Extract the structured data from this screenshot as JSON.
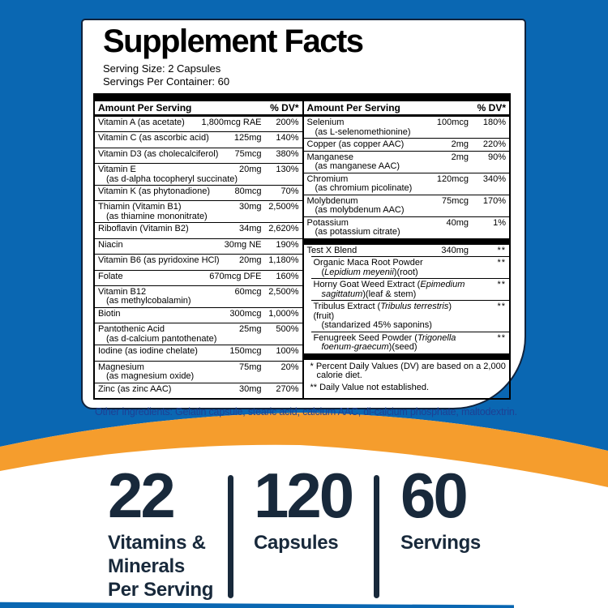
{
  "colors": {
    "background_blue": "#0a67b2",
    "wave_orange": "#f59d2d",
    "navy_text": "#18293b",
    "ingredients_text_blue": "#1e4094"
  },
  "label": {
    "title": "Supplement Facts",
    "serving_size": "Serving Size: 2 Capsules",
    "servings_per_container": "Servings Per Container: 60",
    "header": {
      "amount": "Amount Per Serving",
      "dv": "% DV*"
    },
    "left_rows": [
      {
        "name": "Vitamin A (as acetate)",
        "amt": "1,800mcg RAE",
        "dv": "200%"
      },
      {
        "name": "Vitamin C (as ascorbic acid)",
        "amt": "125mg",
        "dv": "140%"
      },
      {
        "name": "Vitamin D3 (as cholecalciferol)",
        "amt": "75mcg",
        "dv": "380%"
      },
      {
        "name": "Vitamin E",
        "sub": "(as d-alpha tocopheryl succinate)",
        "amt": "20mg",
        "dv": "130%"
      },
      {
        "name": "Vitamin K (as phytonadione)",
        "amt": "80mcg",
        "dv": "70%"
      },
      {
        "name": "Thiamin (Vitamin B1)",
        "sub": "(as thiamine mononitrate)",
        "amt": "30mg",
        "dv": "2,500%"
      },
      {
        "name": "Riboflavin (Vitamin B2)",
        "amt": "34mg",
        "dv": "2,620%"
      },
      {
        "name": "Niacin",
        "amt": "30mg NE",
        "dv": "190%"
      },
      {
        "name": "Vitamin B6 (as pyridoxine HCl)",
        "amt": "20mg",
        "dv": "1,180%"
      },
      {
        "name": "Folate",
        "amt": "670mcg DFE",
        "dv": "160%"
      },
      {
        "name": "Vitamin B12",
        "sub": "(as methylcobalamin)",
        "amt": "60mcg",
        "dv": "2,500%"
      },
      {
        "name": "Biotin",
        "amt": "300mcg",
        "dv": "1,000%"
      },
      {
        "name": "Pantothenic Acid",
        "sub": "(as d-calcium pantothenate)",
        "amt": "25mg",
        "dv": "500%"
      },
      {
        "name": "Iodine (as iodine chelate)",
        "amt": "150mcg",
        "dv": "100%"
      },
      {
        "name": "Magnesium",
        "sub": "(as magnesium oxide)",
        "amt": "75mg",
        "dv": "20%"
      },
      {
        "name": "Zinc (as zinc AAC)",
        "amt": "30mg",
        "dv": "270%"
      }
    ],
    "right_rows": [
      {
        "name": "Selenium",
        "sub": "(as L-selenomethionine)",
        "amt": "100mcg",
        "dv": "180%"
      },
      {
        "name": "Copper (as copper AAC)",
        "amt": "2mg",
        "dv": "220%"
      },
      {
        "name": "Manganese",
        "sub": "(as manganese AAC)",
        "amt": "2mg",
        "dv": "90%"
      },
      {
        "name": "Chromium",
        "sub": "(as chromium picolinate)",
        "amt": "120mcg",
        "dv": "340%"
      },
      {
        "name": "Molybdenum",
        "sub": "(as molybdenum AAC)",
        "amt": "75mcg",
        "dv": "170%"
      },
      {
        "name": "Potassium",
        "sub": "(as potassium citrate)",
        "amt": "40mg",
        "dv": "1%"
      }
    ],
    "blend_rows": [
      {
        "name": "Test X Blend",
        "amt": "340mg",
        "dv": "**"
      },
      {
        "name": "Organic Maca Root Powder",
        "sub": "(_Lepidium meyenii_)(root)",
        "dv": "**",
        "indent": true
      },
      {
        "name": "Horny Goat Weed Extract (_Epimedium_",
        "sub": "_sagittatum_)(leaf & stem)",
        "dv": "**",
        "indent": true
      },
      {
        "name": "Tribulus Extract (_Tribulus terrestris_)(fruit)",
        "sub": "(standarized 45% saponins)",
        "dv": "**",
        "indent": true
      },
      {
        "name": "Fenugreek Seed Powder (_Trigonella_",
        "sub": "_foenum-graecum_)(seed)",
        "dv": "**",
        "indent": true
      }
    ],
    "footnotes": [
      "* Percent Daily Values (DV) are based on a 2,000 calorie diet.",
      "** Daily Value not established."
    ],
    "other_ingredients": "Other ingredients: Gelatin capsule, stearic acid, calcium AAC, di-calcium phosphate, maltodextrin."
  },
  "stats": [
    {
      "value": "22",
      "label": "Vitamins &\nMinerals\nPer Serving"
    },
    {
      "value": "120",
      "label": "Capsules"
    },
    {
      "value": "60",
      "label": "Servings"
    }
  ]
}
